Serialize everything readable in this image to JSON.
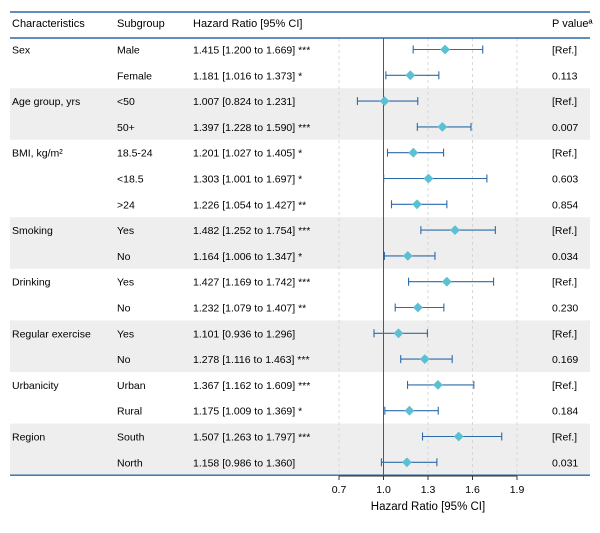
{
  "chart_data": {
    "type": "forest",
    "headers": {
      "characteristics": "Characteristics",
      "subgroup": "Subgroup",
      "hazard_ratio": "Hazard Ratio [95% CI]",
      "p_value": "P valueª"
    },
    "xlabel": "Hazard Ratio [95% CI]",
    "xlim": [
      0.7,
      1.9
    ],
    "xticks": [
      "0.7",
      "1.0",
      "1.3",
      "1.6",
      "1.9"
    ],
    "reference_line": 1.0,
    "point_color": "#5bc0d4",
    "ci_color": "#2c6aa8",
    "band_color": "#eeeeee",
    "groups": [
      {
        "name": "Sex",
        "rows": [
          {
            "subgroup": "Male",
            "label": "1.415 [1.200 to 1.669] ***",
            "hr": 1.415,
            "lo": 1.2,
            "hi": 1.669,
            "p": "[Ref.]"
          },
          {
            "subgroup": "Female",
            "label": "1.181 [1.016 to 1.373] *",
            "hr": 1.181,
            "lo": 1.016,
            "hi": 1.373,
            "p": "0.113"
          }
        ]
      },
      {
        "name": "Age group, yrs",
        "rows": [
          {
            "subgroup": "<50",
            "label": "1.007 [0.824 to 1.231]",
            "hr": 1.007,
            "lo": 0.824,
            "hi": 1.231,
            "p": "[Ref.]"
          },
          {
            "subgroup": "50+",
            "label": "1.397 [1.228 to 1.590] ***",
            "hr": 1.397,
            "lo": 1.228,
            "hi": 1.59,
            "p": "0.007"
          }
        ]
      },
      {
        "name": "BMI, kg/m²",
        "rows": [
          {
            "subgroup": "18.5-24",
            "label": "1.201 [1.027 to 1.405] *",
            "hr": 1.201,
            "lo": 1.027,
            "hi": 1.405,
            "p": "[Ref.]"
          },
          {
            "subgroup": "<18.5",
            "label": "1.303 [1.001 to 1.697] *",
            "hr": 1.303,
            "lo": 1.001,
            "hi": 1.697,
            "p": "0.603"
          },
          {
            "subgroup": ">24",
            "label": "1.226 [1.054 to 1.427] **",
            "hr": 1.226,
            "lo": 1.054,
            "hi": 1.427,
            "p": "0.854"
          }
        ]
      },
      {
        "name": "Smoking",
        "rows": [
          {
            "subgroup": "Yes",
            "label": "1.482 [1.252 to 1.754] ***",
            "hr": 1.482,
            "lo": 1.252,
            "hi": 1.754,
            "p": "[Ref.]"
          },
          {
            "subgroup": "No",
            "label": "1.164 [1.006 to 1.347] *",
            "hr": 1.164,
            "lo": 1.006,
            "hi": 1.347,
            "p": "0.034"
          }
        ]
      },
      {
        "name": "Drinking",
        "rows": [
          {
            "subgroup": "Yes",
            "label": "1.427 [1.169 to 1.742] ***",
            "hr": 1.427,
            "lo": 1.169,
            "hi": 1.742,
            "p": "[Ref.]"
          },
          {
            "subgroup": "No",
            "label": "1.232 [1.079 to 1.407] **",
            "hr": 1.232,
            "lo": 1.079,
            "hi": 1.407,
            "p": "0.230"
          }
        ]
      },
      {
        "name": "Regular exercise",
        "rows": [
          {
            "subgroup": "Yes",
            "label": "1.101 [0.936 to 1.296]",
            "hr": 1.101,
            "lo": 0.936,
            "hi": 1.296,
            "p": "[Ref.]"
          },
          {
            "subgroup": "No",
            "label": "1.278 [1.116 to 1.463] ***",
            "hr": 1.278,
            "lo": 1.116,
            "hi": 1.463,
            "p": "0.169"
          }
        ]
      },
      {
        "name": "Urbanicity",
        "rows": [
          {
            "subgroup": "Urban",
            "label": "1.367 [1.162 to 1.609] ***",
            "hr": 1.367,
            "lo": 1.162,
            "hi": 1.609,
            "p": "[Ref.]"
          },
          {
            "subgroup": "Rural",
            "label": "1.175 [1.009 to 1.369] *",
            "hr": 1.175,
            "lo": 1.009,
            "hi": 1.369,
            "p": "0.184"
          }
        ]
      },
      {
        "name": "Region",
        "rows": [
          {
            "subgroup": "South",
            "label": "1.507 [1.263 to 1.797] ***",
            "hr": 1.507,
            "lo": 1.263,
            "hi": 1.797,
            "p": "[Ref.]"
          },
          {
            "subgroup": "North",
            "label": "1.158 [0.986 to 1.360]",
            "hr": 1.158,
            "lo": 0.986,
            "hi": 1.36,
            "p": "0.031"
          }
        ]
      }
    ]
  }
}
